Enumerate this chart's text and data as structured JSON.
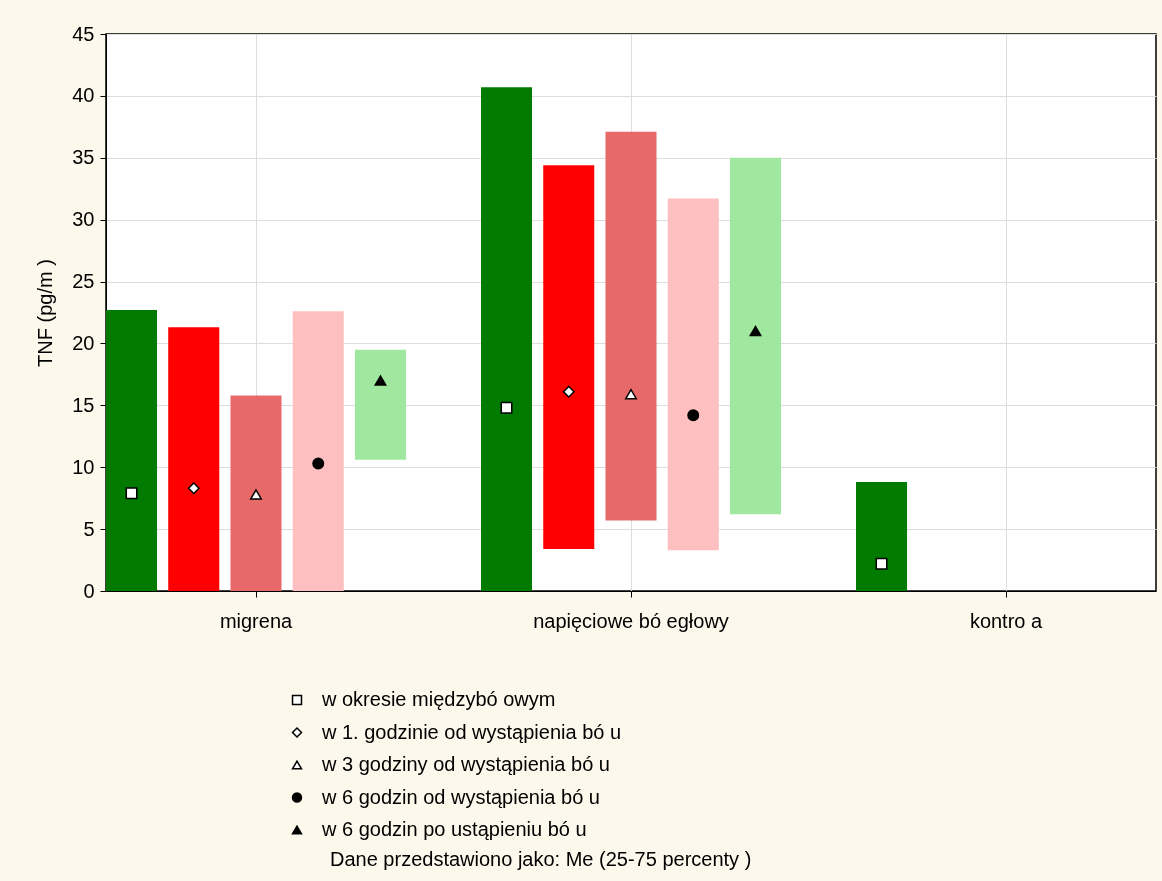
{
  "chart_data": {
    "type": "bar",
    "ylabel": "TNF (pg/m )",
    "categories": [
      "migrena",
      "napięciowe bó egłowy",
      "kontro a"
    ],
    "ylim": [
      0,
      45
    ],
    "yticks": [
      0,
      5,
      10,
      15,
      20,
      25,
      30,
      35,
      40,
      45
    ],
    "grid": true,
    "legend": "bottom",
    "series": [
      {
        "color": "#007a00",
        "base": [
          0,
          0,
          0
        ],
        "values": [
          22.7,
          40.7,
          8.8
        ]
      },
      {
        "color": "#ff0000",
        "base": [
          0,
          3.4,
          null
        ],
        "values": [
          21.3,
          31.0,
          null
        ]
      },
      {
        "color": "#e8696a",
        "base": [
          0,
          5.7,
          null
        ],
        "values": [
          15.8,
          31.4,
          null
        ]
      },
      {
        "color": "#fdbfbf",
        "base": [
          0,
          3.3,
          null
        ],
        "values": [
          22.6,
          28.4,
          null
        ]
      },
      {
        "color": "#a0e8a0",
        "base": [
          10.6,
          6.2,
          null
        ],
        "values": [
          8.9,
          28.8,
          null
        ]
      },
      {
        "type": "scatter",
        "name": "w okresie międzybó owym",
        "marker": "square",
        "color": "#ffffff",
        "x": [
          "migrena",
          "napięciowe bó egłowy",
          "kontro a"
        ],
        "values": [
          7.9,
          14.8,
          2.2
        ]
      },
      {
        "type": "scatter",
        "name": "w 1. godzinie od wystąpienia bó u",
        "marker": "diamond",
        "color": "#ffffff",
        "x": [
          "migrena",
          "napięciowe bó egłowy",
          "kontro a"
        ],
        "values": [
          8.3,
          16.1,
          null
        ]
      },
      {
        "type": "scatter",
        "name": "w 3 godziny od wystąpienia bó u",
        "marker": "triangle",
        "color": "#ffffff",
        "x": [
          "migrena",
          "napięciowe bó egłowy",
          "kontro a"
        ],
        "values": [
          7.8,
          15.9,
          null
        ]
      },
      {
        "type": "scatter",
        "name": "w 6 godzin od wystąpienia bó u",
        "marker": "circle",
        "color": "#000000",
        "x": [
          "migrena",
          "napięciowe bó egłowy",
          "kontro a"
        ],
        "values": [
          10.3,
          14.2,
          null
        ]
      },
      {
        "type": "scatter",
        "name": "w 6 godzin po ustąpieniu bó u",
        "marker": "triangle",
        "color": "#000000",
        "x": [
          "migrena",
          "napięciowe bó egłowy",
          "kontro a"
        ],
        "values": [
          17.0,
          21.0,
          null
        ]
      }
    ],
    "annotations": [
      "Dane przedstawiono jako: Me (25-75 percenty )"
    ]
  }
}
